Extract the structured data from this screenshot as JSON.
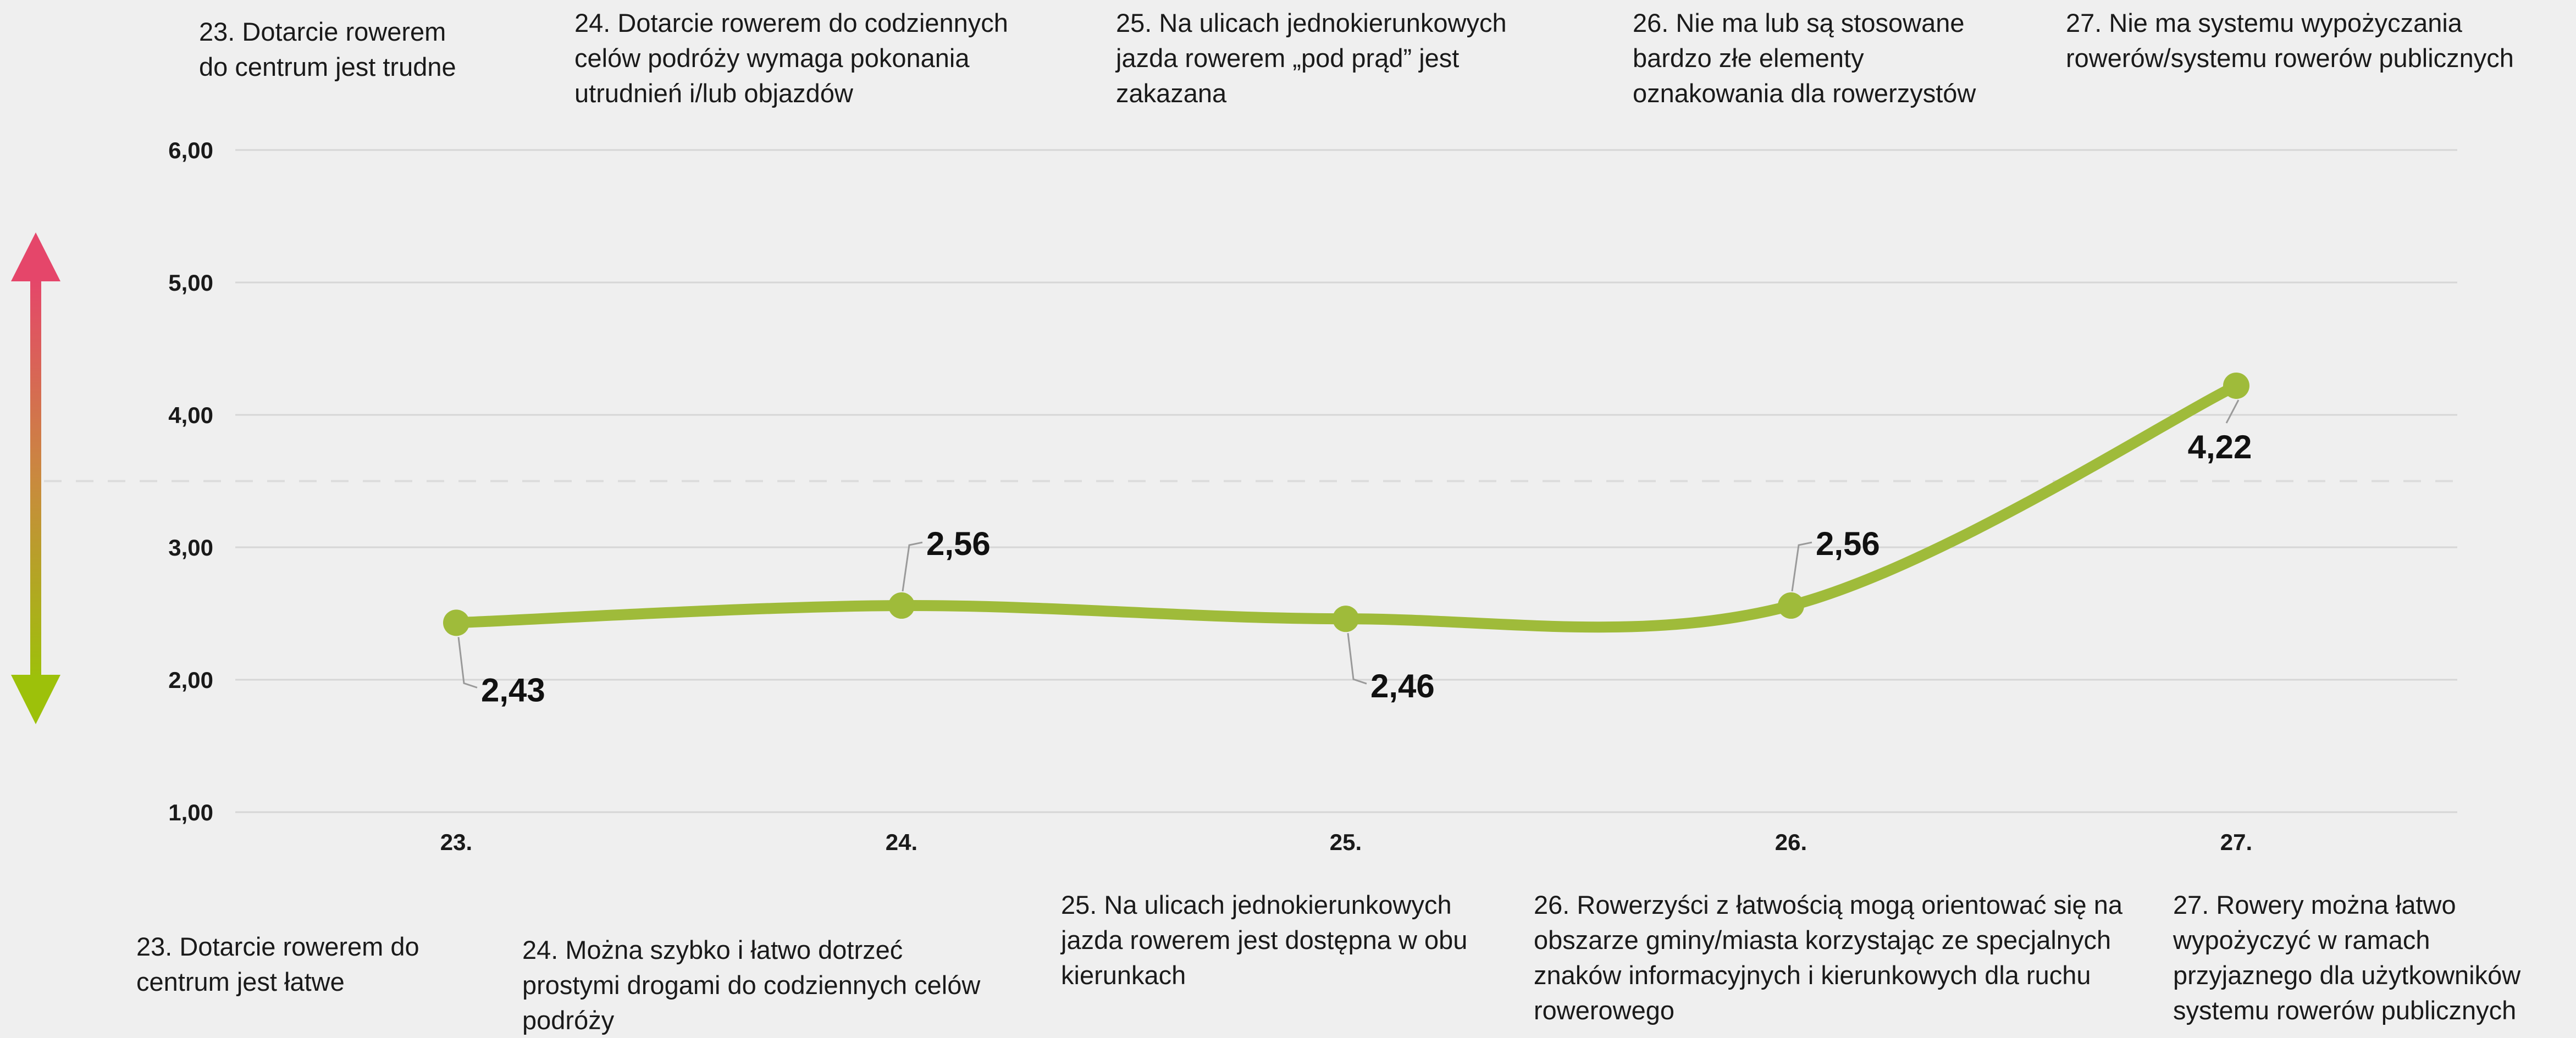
{
  "chart_data": {
    "type": "line",
    "categories": [
      "23.",
      "24.",
      "25.",
      "26.",
      "27."
    ],
    "series": [
      {
        "values": [
          2.43,
          2.56,
          2.46,
          2.56,
          4.22
        ]
      }
    ],
    "value_labels": [
      "2,43",
      "2,56",
      "2,46",
      "2,56",
      "4,22"
    ],
    "ylim": [
      1,
      6
    ],
    "yticks": [
      "1,00",
      "2,00",
      "3,00",
      "4,00",
      "5,00",
      "6,00"
    ],
    "midline": 3.5,
    "grid": true,
    "colors": {
      "line": "#9fbb3a",
      "grid": "#d6d6d6",
      "arrow_top": "#e5466a",
      "arrow_bottom": "#9dc10a"
    }
  },
  "top_labels": [
    "23. Dotarcie rowerem do centrum jest trudne",
    "24. Dotarcie rowerem do codziennych celów podróży wymaga pokonania utrudnień i/lub objazdów",
    "25. Na ulicach jednokierunkowych jazda rowerem „pod prąd” jest zakazana",
    "26. Nie ma lub są stosowane bardzo złe elementy oznakowania dla rowerzystów",
    "27. Nie ma systemu wypożyczania rowerów/systemu rowerów publicznych"
  ],
  "bottom_labels": [
    "23. Dotarcie rowerem do centrum jest łatwe",
    "24. Można szybko i łatwo dotrzeć prostymi drogami do codziennych celów podróży",
    "25. Na ulicach jednokierunkowych jazda rowerem jest dostępna w obu kierunkach",
    "26. Rowerzyści z łatwością mogą orientować się na obszarze gminy/miasta korzystając ze specjalnych znaków informacyjnych i kierunkowych dla ruchu rowerowego",
    "27. Rowery można łatwo wypożyczyć w ramach przyjaznego dla użytkowników systemu rowerów publicznych"
  ]
}
